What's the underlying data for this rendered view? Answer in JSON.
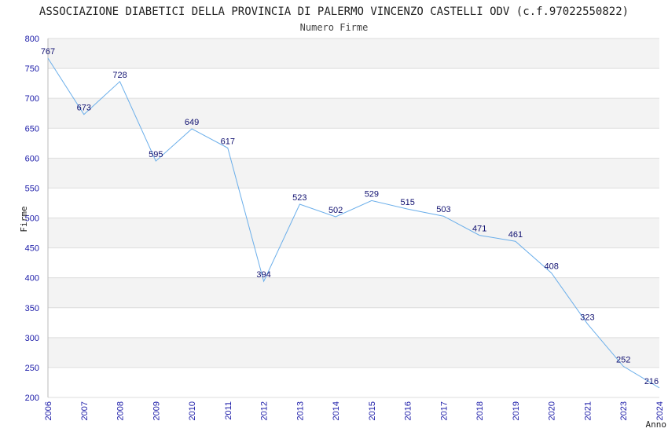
{
  "chart_data": {
    "type": "line",
    "title": "ASSOCIAZIONE DIABETICI DELLA PROVINCIA DI PALERMO VINCENZO CASTELLI ODV (c.f.97022550822)",
    "subtitle": "Numero Firme",
    "xlabel": "Anno",
    "ylabel": "Firme",
    "ylim": [
      200,
      800
    ],
    "yticks": [
      200,
      250,
      300,
      350,
      400,
      450,
      500,
      550,
      600,
      650,
      700,
      750,
      800
    ],
    "grid": true,
    "categories": [
      "2006",
      "2007",
      "2008",
      "2009",
      "2010",
      "2011",
      "2012",
      "2013",
      "2014",
      "2015",
      "2016",
      "2017",
      "2018",
      "2019",
      "2020",
      "2021",
      "2023",
      "2024"
    ],
    "series": [
      {
        "values": [
          767,
          673,
          728,
          595,
          649,
          617,
          394,
          523,
          502,
          529,
          515,
          503,
          471,
          461,
          408,
          323,
          252,
          216
        ]
      }
    ]
  },
  "colors": {
    "line": "#6aaeea",
    "tick_text": "#1a1aa8",
    "data_label": "#101070",
    "band_alt": "#f3f3f3",
    "grid": "#dddddd"
  }
}
